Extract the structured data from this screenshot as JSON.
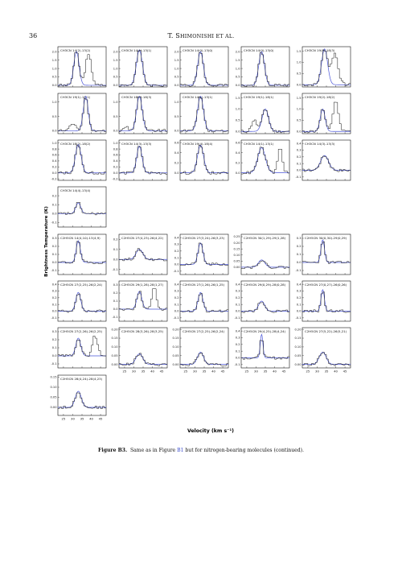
{
  "header": {
    "page_number": "36",
    "running_head_first": "T. S",
    "running_head_rest": "HIMONISHI ET AL."
  },
  "caption": {
    "label": "Figure B3.",
    "text_before": "Same as in Figure",
    "ref": "B1",
    "text_after": "but for nitrogen-bearing molecules (continued)."
  },
  "colors": {
    "model": "#4a55d8",
    "observed": "#111111"
  },
  "chart_data": {
    "type": "line",
    "xlabel": "Velocity (km s⁻¹)",
    "ylabel": "Brightness Temperature (K)",
    "x_ticks": [
      "25",
      "30",
      "35",
      "40",
      "45"
    ],
    "xlim": [
      22,
      48
    ],
    "panels": [
      {
        "id": "p1",
        "title": "CH3CN 14(2)-13(2)",
        "ylim": [
          -0.1,
          2.3
        ],
        "yticks": [
          "0.0",
          "0.5",
          "1.0",
          "1.5",
          "2.0"
        ],
        "peak": 2.0,
        "center": 32,
        "width": 2.8,
        "extra": [
          {
            "c": 38.5,
            "a": 1.8,
            "w": 1.6
          }
        ]
      },
      {
        "id": "p2",
        "title": "CH3CN 14(1)-13(1)",
        "ylim": [
          -0.1,
          2.3
        ],
        "yticks": [
          "0.0",
          "0.5",
          "1.0",
          "1.5",
          "2.0"
        ],
        "peak": 2.1,
        "center": 33,
        "width": 3.2,
        "extra": []
      },
      {
        "id": "p3",
        "title": "CH3CN 14(0)-13(0)",
        "ylim": [
          -0.1,
          2.3
        ],
        "yticks": [
          "0.0",
          "0.5",
          "1.0",
          "1.5",
          "2.0"
        ],
        "peak": 2.0,
        "center": 33,
        "width": 3.0,
        "extra": []
      },
      {
        "id": "p4",
        "title": "CH3CN 14(0)-13(0)",
        "ylim": [
          -0.1,
          2.3
        ],
        "yticks": [
          "0.0",
          "0.5",
          "1.0",
          "1.5",
          "2.0"
        ],
        "peak": 2.0,
        "center": 33,
        "width": 3.0,
        "extra": []
      },
      {
        "id": "p5",
        "title": "CH3CN 19(3)-18(3)",
        "ylim": [
          -0.1,
          1.7
        ],
        "yticks": [
          "0.0",
          "0.5",
          "1.0",
          "1.5"
        ],
        "peak": 1.6,
        "center": 34,
        "width": 3.2,
        "extra": [
          {
            "c": 39.5,
            "a": 1.4,
            "w": 1.8
          }
        ]
      },
      {
        "id": "p6",
        "title": "CH3CN 19(1)-18(1)",
        "ylim": [
          -0.1,
          1.3
        ],
        "yticks": [
          "0.0",
          "0.5",
          "1.0"
        ],
        "peak": 1.2,
        "center": 37,
        "width": 2.6,
        "extra": [
          {
            "c": 30,
            "a": 0.25,
            "w": 1.5
          }
        ]
      },
      {
        "id": "p7",
        "title": "CH3CN 18(3)-18(3)",
        "ylim": [
          -0.1,
          1.3
        ],
        "yticks": [
          "0.0",
          "0.5",
          "1.0"
        ],
        "peak": 1.2,
        "center": 33,
        "width": 3.0,
        "extra": [
          {
            "c": 26,
            "a": 0.15,
            "w": 1.2
          }
        ]
      },
      {
        "id": "p8",
        "title": "CH3CN 14(1)-13(1)",
        "ylim": [
          -0.1,
          1.3
        ],
        "yticks": [
          "0.0",
          "0.5",
          "1.0"
        ],
        "peak": 1.2,
        "center": 33,
        "width": 3.1,
        "extra": []
      },
      {
        "id": "p9",
        "title": "CH3CN 19(1)-18(1)",
        "ylim": [
          -0.1,
          1.7
        ],
        "yticks": [
          "0.0",
          "0.5",
          "1.0",
          "1.5"
        ],
        "peak": 1.0,
        "center": 35,
        "width": 3.4,
        "extra": [
          {
            "c": 29,
            "a": 0.5,
            "w": 1.4
          }
        ]
      },
      {
        "id": "p10",
        "title": "CH3CN 19(2)-18(2)",
        "ylim": [
          -0.1,
          1.7
        ],
        "yticks": [
          "0.0",
          "0.5",
          "1.0",
          "1.5"
        ],
        "peak": 1.0,
        "center": 33,
        "width": 2.6,
        "extra": [
          {
            "c": 40,
            "a": 1.4,
            "w": 1.4
          }
        ]
      },
      {
        "id": "p11",
        "title": "CH3CN 18(2)-18(2)",
        "ylim": [
          -0.25,
          1.1
        ],
        "yticks": [
          "-0.2",
          "0.0",
          "0.2",
          "0.4",
          "0.6",
          "0.8",
          "1.0"
        ],
        "peak": 0.95,
        "center": 33,
        "width": 3.0,
        "extra": []
      },
      {
        "id": "p12",
        "title": "CH3CN 14(3)-13(3)",
        "ylim": [
          -0.25,
          1.1
        ],
        "yticks": [
          "-0.2",
          "0.0",
          "0.2",
          "0.4",
          "0.6",
          "0.8",
          "1.0"
        ],
        "peak": 0.9,
        "center": 33,
        "width": 2.8,
        "extra": []
      },
      {
        "id": "p13",
        "title": "CH3CN 19(4)-18(4)",
        "ylim": [
          -0.15,
          0.65
        ],
        "yticks": [
          "0.0",
          "0.2",
          "0.4",
          "0.6"
        ],
        "peak": 0.55,
        "center": 33,
        "width": 3.2,
        "extra": []
      },
      {
        "id": "p14",
        "title": "CH3CN 14(1)-13(1)",
        "ylim": [
          -0.15,
          0.65
        ],
        "yticks": [
          "0.0",
          "0.2",
          "0.4",
          "0.6"
        ],
        "peak": 0.5,
        "center": 33,
        "width": 4.0,
        "extra": [
          {
            "c": 43,
            "a": 0.5,
            "w": 1.2
          }
        ]
      },
      {
        "id": "p15",
        "title": "CH3CN 14(3)-13(3)",
        "ylim": [
          -0.15,
          0.45
        ],
        "yticks": [
          "-0.1",
          "0.0",
          "0.1",
          "0.2",
          "0.3",
          "0.4"
        ],
        "peak": 0.22,
        "center": 34,
        "width": 4.2,
        "extra": []
      },
      {
        "id": "p16",
        "title": "CH3CN 14(4)-13(4)",
        "ylim": [
          -0.15,
          0.3
        ],
        "yticks": [
          "-0.1",
          "0.0",
          "0.1",
          "0.2"
        ],
        "peak": 0.12,
        "center": 33,
        "width": 2.6,
        "extra": []
      },
      {
        "id": "p17",
        "title": "C2H5CN 14(4,10)-13(4,9)",
        "ylim": [
          -0.15,
          0.35
        ],
        "yticks": [
          "-0.1",
          "0.0",
          "0.1",
          "0.2",
          "0.3"
        ],
        "peak": 0.27,
        "center": 33,
        "width": 2.2,
        "extra": []
      },
      {
        "id": "p18",
        "title": "C2H5CN 27(4,23)-26(4,22)",
        "ylim": [
          -0.15,
          0.25
        ],
        "yticks": [
          "-0.1",
          "0.0",
          "0.1",
          "0.2"
        ],
        "peak": 0.1,
        "center": 33,
        "width": 3.6,
        "extra": []
      },
      {
        "id": "p19",
        "title": "C2H5CN 27(3,24)-26(3,23)",
        "ylim": [
          -0.15,
          0.45
        ],
        "yticks": [
          "-0.1",
          "0.0",
          "0.1",
          "0.2",
          "0.3",
          "0.4"
        ],
        "peak": 0.32,
        "center": 33,
        "width": 2.6,
        "extra": []
      },
      {
        "id": "p20",
        "title": "C2H5CN 30(1,29)-29(1,28)",
        "ylim": [
          -0.06,
          0.27
        ],
        "yticks": [
          "0.00",
          "0.05",
          "0.10",
          "0.15",
          "0.20",
          "0.25"
        ],
        "peak": 0.06,
        "center": 33,
        "width": 3.4,
        "extra": []
      },
      {
        "id": "p21",
        "title": "C2H5CN 30(0,30)-29(0,29)",
        "ylim": [
          -0.15,
          0.35
        ],
        "yticks": [
          "-0.1",
          "0.0",
          "0.1",
          "0.2",
          "0.3"
        ],
        "peak": 0.28,
        "center": 33,
        "width": 1.9,
        "extra": []
      },
      {
        "id": "p22",
        "title": "C2H5CN 27(2,25)-26(2,24)",
        "ylim": [
          -0.15,
          0.45
        ],
        "yticks": [
          "-0.1",
          "0.0",
          "0.1",
          "0.2",
          "0.3",
          "0.4"
        ],
        "peak": 0.28,
        "center": 33,
        "width": 2.6,
        "extra": []
      },
      {
        "id": "p23",
        "title": "C2H5CN 29(1,28)-28(1,27)",
        "ylim": [
          -0.15,
          0.35
        ],
        "yticks": [
          "-0.1",
          "0.0",
          "0.1",
          "0.2",
          "0.3"
        ],
        "peak": 0.22,
        "center": 33,
        "width": 2.6,
        "extra": [
          {
            "c": 41,
            "a": 0.26,
            "w": 1.2
          }
        ]
      },
      {
        "id": "p24",
        "title": "C2H5CN 27(1,26)-26(1,25)",
        "ylim": [
          -0.15,
          0.45
        ],
        "yticks": [
          "-0.1",
          "0.0",
          "0.1",
          "0.2",
          "0.3",
          "0.4"
        ],
        "peak": 0.28,
        "center": 33,
        "width": 2.6,
        "extra": []
      },
      {
        "id": "p25",
        "title": "C2H5CN 29(0,29)-28(0,28)",
        "ylim": [
          -0.15,
          0.45
        ],
        "yticks": [
          "-0.1",
          "0.0",
          "0.1",
          "0.2",
          "0.3",
          "0.4"
        ],
        "peak": 0.15,
        "center": 33,
        "width": 3.2,
        "extra": []
      },
      {
        "id": "p26",
        "title": "C2H5CN 27(0,27)-26(0,26)",
        "ylim": [
          -0.15,
          0.45
        ],
        "yticks": [
          "-0.1",
          "0.0",
          "0.1",
          "0.2",
          "0.3",
          "0.4"
        ],
        "peak": 0.32,
        "center": 33,
        "width": 1.8,
        "extra": []
      },
      {
        "id": "p27",
        "title": "C2H5CN 27(2,26)-26(2,25)",
        "ylim": [
          -0.15,
          0.35
        ],
        "yticks": [
          "-0.1",
          "0.0",
          "0.1",
          "0.2",
          "0.3"
        ],
        "peak": 0.22,
        "center": 33,
        "width": 2.6,
        "extra": [
          {
            "c": 42,
            "a": 0.25,
            "w": 1.4
          }
        ]
      },
      {
        "id": "p28",
        "title": "C2H5CN 28(3,26)-28(3,25)",
        "ylim": [
          -0.02,
          0.21
        ],
        "yticks": [
          "0.00",
          "0.05",
          "0.10",
          "0.15",
          "0.20"
        ],
        "peak": 0.06,
        "center": 33,
        "width": 3.6,
        "extra": []
      },
      {
        "id": "p29",
        "title": "C2H5CN 27(2,25)-26(2,24)",
        "ylim": [
          -0.02,
          0.21
        ],
        "yticks": [
          "0.00",
          "0.05",
          "0.10",
          "0.15",
          "0.20"
        ],
        "peak": 0.07,
        "center": 33,
        "width": 3.2,
        "extra": []
      },
      {
        "id": "p30",
        "title": "C2H5CN 29(4,25)-28(4,24)",
        "ylim": [
          -0.15,
          0.45
        ],
        "yticks": [
          "-0.1",
          "0.0",
          "0.1",
          "0.2",
          "0.3",
          "0.4"
        ],
        "peak": 0.35,
        "center": 33,
        "width": 1.4,
        "extra": []
      },
      {
        "id": "p31",
        "title": "C2H5CN 27(5,22)-26(5,21)",
        "ylim": [
          -0.02,
          0.21
        ],
        "yticks": [
          "0.00",
          "0.05",
          "0.10",
          "0.15",
          "0.20"
        ],
        "peak": 0.07,
        "center": 33,
        "width": 3.6,
        "extra": []
      },
      {
        "id": "p32",
        "title": "C2H5CN 28(4,24)-28(4,23)",
        "ylim": [
          -0.04,
          0.16
        ],
        "yticks": [
          "-0.05",
          "0.00",
          "0.05",
          "0.10",
          "0.15"
        ],
        "peak": 0.08,
        "center": 33,
        "width": 3.2,
        "extra": []
      }
    ]
  }
}
